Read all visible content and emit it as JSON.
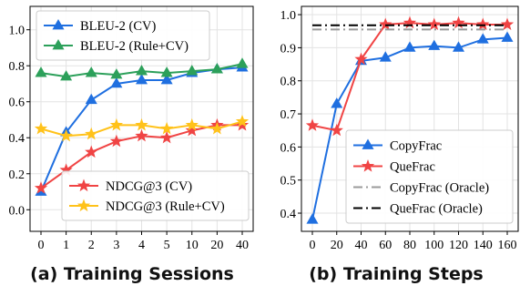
{
  "chart_data": [
    {
      "type": "line",
      "caption": "(a) Training Sessions",
      "categories": [
        "0",
        "1",
        "2",
        "3",
        "4",
        "5",
        "10",
        "20",
        "40"
      ],
      "ylim": [
        -0.12,
        1.13
      ],
      "yticks": [
        "0.0",
        "0.2",
        "0.4",
        "0.6",
        "0.8",
        "1.0"
      ],
      "grid": true,
      "series": [
        {
          "name": "BLEU-2 (CV)",
          "color": "#1f6fe0",
          "marker": "triangle",
          "legend_group": "top",
          "values": [
            0.1,
            0.43,
            0.61,
            0.7,
            0.72,
            0.72,
            0.76,
            0.78,
            0.79
          ]
        },
        {
          "name": "BLEU-2 (Rule+CV)",
          "color": "#2ca05a",
          "marker": "triangle",
          "legend_group": "top",
          "values": [
            0.76,
            0.74,
            0.76,
            0.75,
            0.77,
            0.76,
            0.77,
            0.78,
            0.81
          ]
        },
        {
          "name": "NDCG@3 (CV)",
          "color": "#f04444",
          "marker": "star",
          "legend_group": "bottom",
          "values": [
            0.12,
            0.22,
            0.32,
            0.38,
            0.41,
            0.4,
            0.44,
            0.47,
            0.47
          ]
        },
        {
          "name": "NDCG@3 (Rule+CV)",
          "color": "#ffc21a",
          "marker": "star",
          "legend_group": "bottom",
          "values": [
            0.45,
            0.41,
            0.42,
            0.47,
            0.47,
            0.45,
            0.47,
            0.45,
            0.49
          ]
        }
      ]
    },
    {
      "type": "line",
      "caption": "(b) Training Steps",
      "categories": [
        "0",
        "20",
        "40",
        "60",
        "80",
        "100",
        "120",
        "140",
        "160"
      ],
      "ylim": [
        0.345,
        1.025
      ],
      "yticks": [
        "0.4",
        "0.5",
        "0.6",
        "0.7",
        "0.8",
        "0.9",
        "1.0"
      ],
      "grid": true,
      "legend_position": "center-right",
      "series": [
        {
          "name": "CopyFrac",
          "color": "#1f6fe0",
          "marker": "triangle",
          "style": "solid",
          "values": [
            0.38,
            0.73,
            0.86,
            0.87,
            0.9,
            0.905,
            0.9,
            0.925,
            0.93
          ]
        },
        {
          "name": "QueFrac",
          "color": "#f04444",
          "marker": "star",
          "style": "solid",
          "values": [
            0.665,
            0.65,
            0.865,
            0.97,
            0.975,
            0.97,
            0.975,
            0.97,
            0.97
          ]
        },
        {
          "name": "CopyFrac (Oracle)",
          "color": "#9a9a9a",
          "marker": "none",
          "style": "dashdot",
          "values": [
            0.955,
            0.955,
            0.955,
            0.955,
            0.955,
            0.955,
            0.955,
            0.955,
            0.955
          ]
        },
        {
          "name": "QueFrac (Oracle)",
          "color": "#000000",
          "marker": "none",
          "style": "dashdot",
          "values": [
            0.968,
            0.968,
            0.968,
            0.968,
            0.968,
            0.968,
            0.968,
            0.968,
            0.968
          ]
        }
      ]
    }
  ]
}
